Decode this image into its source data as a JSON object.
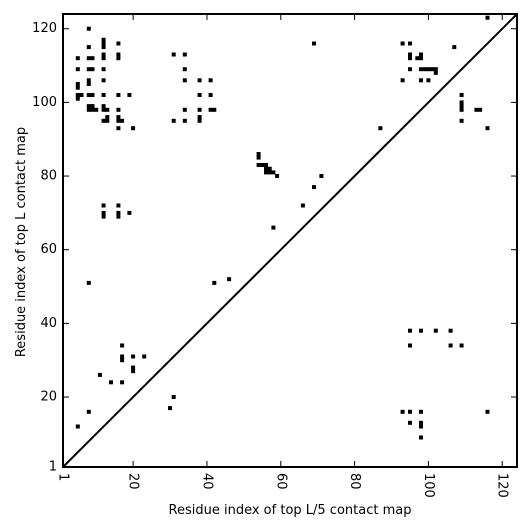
{
  "chart_data": {
    "type": "scatter",
    "title": "",
    "xlabel": "Residue index of top L/5 contact map",
    "ylabel": "Residue index of top L contact map",
    "xlim": [
      1,
      124
    ],
    "ylim": [
      1,
      124
    ],
    "x_ticks": [
      1,
      20,
      40,
      60,
      80,
      100,
      120
    ],
    "y_ticks": [
      1,
      20,
      40,
      60,
      80,
      100,
      120
    ],
    "x_tick_rotation_deg": 90,
    "grid": false,
    "diagonal_line": true,
    "marker": "square",
    "marker_color": "#000000",
    "series": [
      {
        "points_upper_triangle": [
          [
            5,
            112
          ],
          [
            5,
            109
          ],
          [
            5,
            105
          ],
          [
            5,
            104
          ],
          [
            5,
            102
          ],
          [
            5,
            101
          ],
          [
            6,
            102
          ],
          [
            8,
            120
          ],
          [
            8,
            115
          ],
          [
            8,
            112
          ],
          [
            8,
            109
          ],
          [
            8,
            106
          ],
          [
            8,
            105
          ],
          [
            8,
            102
          ],
          [
            8,
            99
          ],
          [
            8,
            98
          ],
          [
            9,
            112
          ],
          [
            9,
            109
          ],
          [
            9,
            102
          ],
          [
            9,
            99
          ],
          [
            9,
            98
          ],
          [
            10,
            98
          ],
          [
            12,
            117
          ],
          [
            12,
            116
          ],
          [
            12,
            115
          ],
          [
            12,
            113
          ],
          [
            12,
            112
          ],
          [
            12,
            109
          ],
          [
            12,
            106
          ],
          [
            12,
            102
          ],
          [
            12,
            99
          ],
          [
            12,
            98
          ],
          [
            12,
            95
          ],
          [
            13,
            98
          ],
          [
            13,
            96
          ],
          [
            13,
            95
          ],
          [
            16,
            116
          ],
          [
            16,
            113
          ],
          [
            16,
            112
          ],
          [
            16,
            102
          ],
          [
            16,
            98
          ],
          [
            16,
            96
          ],
          [
            16,
            95
          ],
          [
            16,
            93
          ],
          [
            17,
            95
          ],
          [
            19,
            102
          ],
          [
            20,
            93
          ],
          [
            31,
            113
          ],
          [
            31,
            95
          ],
          [
            34,
            113
          ],
          [
            34,
            109
          ],
          [
            34,
            106
          ],
          [
            34,
            98
          ],
          [
            34,
            95
          ],
          [
            38,
            106
          ],
          [
            38,
            102
          ],
          [
            38,
            98
          ],
          [
            38,
            96
          ],
          [
            38,
            95
          ],
          [
            41,
            106
          ],
          [
            41,
            102
          ],
          [
            41,
            98
          ],
          [
            42,
            98
          ],
          [
            12,
            72
          ],
          [
            12,
            70
          ],
          [
            12,
            69
          ],
          [
            16,
            72
          ],
          [
            16,
            70
          ],
          [
            16,
            69
          ],
          [
            19,
            70
          ],
          [
            8,
            51
          ],
          [
            42,
            51
          ],
          [
            46,
            52
          ],
          [
            54,
            86
          ],
          [
            54,
            85
          ],
          [
            54,
            83
          ],
          [
            55,
            83
          ],
          [
            56,
            83
          ],
          [
            56,
            82
          ],
          [
            56,
            81
          ],
          [
            57,
            82
          ],
          [
            57,
            81
          ],
          [
            58,
            81
          ],
          [
            59,
            80
          ],
          [
            58,
            66
          ],
          [
            66,
            72
          ],
          [
            69,
            77
          ],
          [
            71,
            80
          ],
          [
            69,
            116
          ],
          [
            87,
            93
          ]
        ],
        "points_lower_triangle": [
          [
            93,
            116
          ],
          [
            93,
            106
          ],
          [
            95,
            116
          ],
          [
            95,
            113
          ],
          [
            95,
            112
          ],
          [
            95,
            109
          ],
          [
            97,
            112
          ],
          [
            98,
            113
          ],
          [
            98,
            112
          ],
          [
            98,
            109
          ],
          [
            98,
            106
          ],
          [
            99,
            109
          ],
          [
            100,
            109
          ],
          [
            100,
            106
          ],
          [
            101,
            109
          ],
          [
            102,
            109
          ],
          [
            102,
            108
          ],
          [
            107,
            115
          ],
          [
            109,
            102
          ],
          [
            109,
            100
          ],
          [
            109,
            99
          ],
          [
            109,
            98
          ],
          [
            109,
            95
          ],
          [
            113,
            98
          ],
          [
            114,
            98
          ],
          [
            116,
            123
          ],
          [
            116,
            93
          ],
          [
            95,
            38
          ],
          [
            95,
            34
          ],
          [
            98,
            38
          ],
          [
            102,
            38
          ],
          [
            106,
            38
          ],
          [
            106,
            34
          ],
          [
            109,
            34
          ],
          [
            93,
            16
          ],
          [
            95,
            16
          ],
          [
            98,
            16
          ],
          [
            116,
            16
          ],
          [
            95,
            13
          ],
          [
            98,
            13
          ],
          [
            98,
            12
          ],
          [
            98,
            9
          ],
          [
            5,
            12
          ],
          [
            8,
            16
          ],
          [
            11,
            26
          ],
          [
            14,
            24
          ],
          [
            17,
            34
          ],
          [
            17,
            31
          ],
          [
            17,
            30
          ],
          [
            17,
            24
          ],
          [
            20,
            31
          ],
          [
            20,
            28
          ],
          [
            20,
            27
          ],
          [
            23,
            31
          ],
          [
            30,
            17
          ],
          [
            31,
            20
          ]
        ]
      }
    ]
  }
}
